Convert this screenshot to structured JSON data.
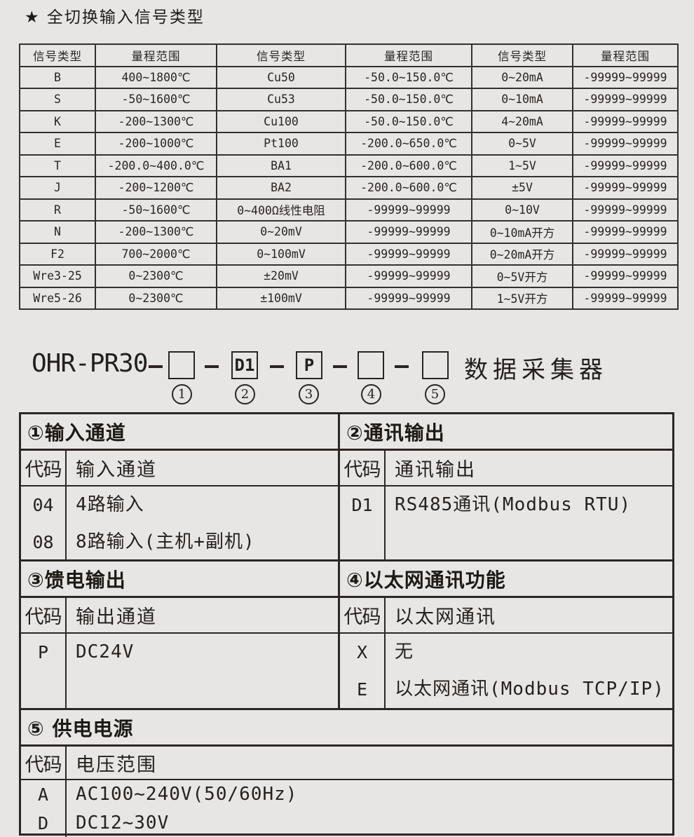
{
  "page": {
    "title": "★ 全切换输入信号类型",
    "colors": {
      "background": "#e8e6e5",
      "ink": "#29241f",
      "border": "#2c2723"
    }
  },
  "signal_table": {
    "headers": [
      "信号类型",
      "量程范围",
      "信号类型",
      "量程范围",
      "信号类型",
      "量程范围"
    ],
    "rows": [
      [
        "B",
        "400~1800℃",
        "Cu50",
        "-50.0~150.0℃",
        "0~20mA",
        "-99999~99999"
      ],
      [
        "S",
        "-50~1600℃",
        "Cu53",
        "-50.0~150.0℃",
        "0~10mA",
        "-99999~99999"
      ],
      [
        "K",
        "-200~1300℃",
        "Cu100",
        "-50.0~150.0℃",
        "4~20mA",
        "-99999~99999"
      ],
      [
        "E",
        "-200~1000℃",
        "Pt100",
        "-200.0~650.0℃",
        "0~5V",
        "-99999~99999"
      ],
      [
        "T",
        "-200.0~400.0℃",
        "BA1",
        "-200.0~600.0℃",
        "1~5V",
        "-99999~99999"
      ],
      [
        "J",
        "-200~1200℃",
        "BA2",
        "-200.0~600.0℃",
        "±5V",
        "-99999~99999"
      ],
      [
        "R",
        "-50~1600℃",
        "0~400Ω线性电阻",
        "-99999~99999",
        "0~10V",
        "-99999~99999"
      ],
      [
        "N",
        "-200~1300℃",
        "0~20mV",
        "-99999~99999",
        "0~10mA开方",
        "-99999~99999"
      ],
      [
        "F2",
        "700~2000℃",
        "0~100mV",
        "-99999~99999",
        "0~20mA开方",
        "-99999~99999"
      ],
      [
        "Wre3-25",
        "0~2300℃",
        "±20mV",
        "-99999~99999",
        "0~5V开方",
        "-99999~99999"
      ],
      [
        "Wre5-26",
        "0~2300℃",
        "±100mV",
        "-99999~99999",
        "1~5V开方",
        "-99999~99999"
      ]
    ]
  },
  "model": {
    "prefix": "OHR-PR30",
    "suffix": "数据采集器",
    "slots": [
      {
        "value": "",
        "num": "1"
      },
      {
        "value": "D1",
        "num": "2"
      },
      {
        "value": "P",
        "num": "3"
      },
      {
        "value": "",
        "num": "4"
      },
      {
        "value": "",
        "num": "5"
      }
    ]
  },
  "order_tables": [
    {
      "title": "①输入通道",
      "code_header": "代码",
      "desc_header": "输入通道",
      "rows": [
        [
          "04",
          "4路输入"
        ],
        [
          "08",
          "8路输入(主机+副机)"
        ]
      ]
    },
    {
      "title": "②通讯输出",
      "code_header": "代码",
      "desc_header": "通讯输出",
      "rows": [
        [
          "D1",
          "RS485通讯(Modbus RTU)"
        ]
      ]
    },
    {
      "title": "③馈电输出",
      "code_header": "代码",
      "desc_header": "输出通道",
      "rows": [
        [
          "P",
          "DC24V"
        ]
      ]
    },
    {
      "title": "④以太网通讯功能",
      "code_header": "代码",
      "desc_header": "以太网通讯",
      "rows": [
        [
          "X",
          "无"
        ],
        [
          "E",
          "以太网通讯(Modbus TCP/IP)"
        ]
      ]
    },
    {
      "title": "⑤ 供电电源",
      "code_header": "代码",
      "desc_header": "电压范围",
      "rows": [
        [
          "A",
          "AC100~240V(50/60Hz)"
        ],
        [
          "D",
          "DC12~30V"
        ]
      ]
    }
  ]
}
